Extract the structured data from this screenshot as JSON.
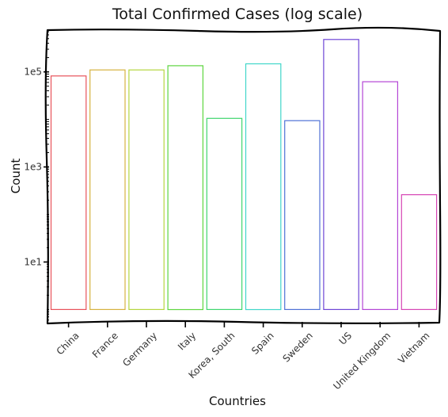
{
  "chart_data": {
    "type": "bar",
    "title": "Total Confirmed Cases (log scale)",
    "xlabel": "Countries",
    "ylabel": "Count",
    "yscale": "log",
    "ylim": [
      0.55,
      700000
    ],
    "bar_bottom": 1,
    "yticks": [
      {
        "value": 10,
        "label": "1e1"
      },
      {
        "value": 1000,
        "label": "1e3"
      },
      {
        "value": 100000,
        "label": "1e5"
      }
    ],
    "categories": [
      "China",
      "France",
      "Germany",
      "Italy",
      "Korea, South",
      "Spain",
      "Sweden",
      "US",
      "United Kingdom",
      "Vietnam"
    ],
    "values": [
      82000,
      110000,
      110000,
      135000,
      10500,
      148000,
      9400,
      480000,
      62000,
      260
    ],
    "colors": [
      "#e8525a",
      "#d6b240",
      "#b5d640",
      "#5ed640",
      "#40d66e",
      "#40d6c9",
      "#4f72d6",
      "#6e45d6",
      "#b445d6",
      "#d645b5"
    ],
    "grid": false,
    "legend": "none"
  }
}
